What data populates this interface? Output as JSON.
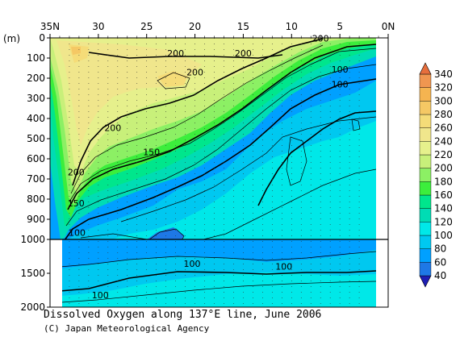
{
  "chart_data": {
    "type": "heatmap",
    "title": "Dissolved Oxygen along 137°E line, June 2006",
    "credit": "(C) Japan Meteorological Agency",
    "y_unit_label": "(m)",
    "x_ticks": [
      "35N",
      "30",
      "25",
      "20",
      "15",
      "10",
      "5",
      "0N"
    ],
    "x_tick_values": [
      35,
      30,
      25,
      20,
      15,
      10,
      5,
      0
    ],
    "y_ticks_upper": [
      "0",
      "100",
      "200",
      "300",
      "400",
      "500",
      "600",
      "700",
      "800",
      "900",
      "1000"
    ],
    "y_ticks_lower": [
      "1500",
      "2000"
    ],
    "y_upper_range": [
      0,
      1000
    ],
    "y_lower_range": [
      1000,
      2000
    ],
    "colorbar_levels": [
      40,
      60,
      80,
      100,
      120,
      140,
      160,
      180,
      200,
      220,
      240,
      260,
      280,
      300,
      320,
      340
    ],
    "colorbar_labels": [
      "340",
      "320",
      "300",
      "280",
      "260",
      "240",
      "220",
      "200",
      "180",
      "160",
      "140",
      "120",
      "100",
      "80",
      "60",
      "40"
    ],
    "contour_labels": [
      {
        "text": "200",
        "lat": 22,
        "depth": 75
      },
      {
        "text": "200",
        "lat": 15,
        "depth": 75
      },
      {
        "text": "200",
        "lat": 7,
        "depth": 2
      },
      {
        "text": "100",
        "lat": 5,
        "depth": 155
      },
      {
        "text": "200",
        "lat": 20,
        "depth": 170
      },
      {
        "text": "100",
        "lat": 5,
        "depth": 230
      },
      {
        "text": "200",
        "lat": 28.5,
        "depth": 445
      },
      {
        "text": "150",
        "lat": 24.5,
        "depth": 565
      },
      {
        "text": "200",
        "lat": 32.3,
        "depth": 665
      },
      {
        "text": "150",
        "lat": 32.3,
        "depth": 820
      },
      {
        "text": "100",
        "lat": 32.2,
        "depth": 965
      },
      {
        "text": "100",
        "lat": 20.3,
        "depth": 1360
      },
      {
        "text": "100",
        "lat": 10.8,
        "depth": 1400
      },
      {
        "text": "100",
        "lat": 29.8,
        "depth": 1820
      }
    ]
  }
}
